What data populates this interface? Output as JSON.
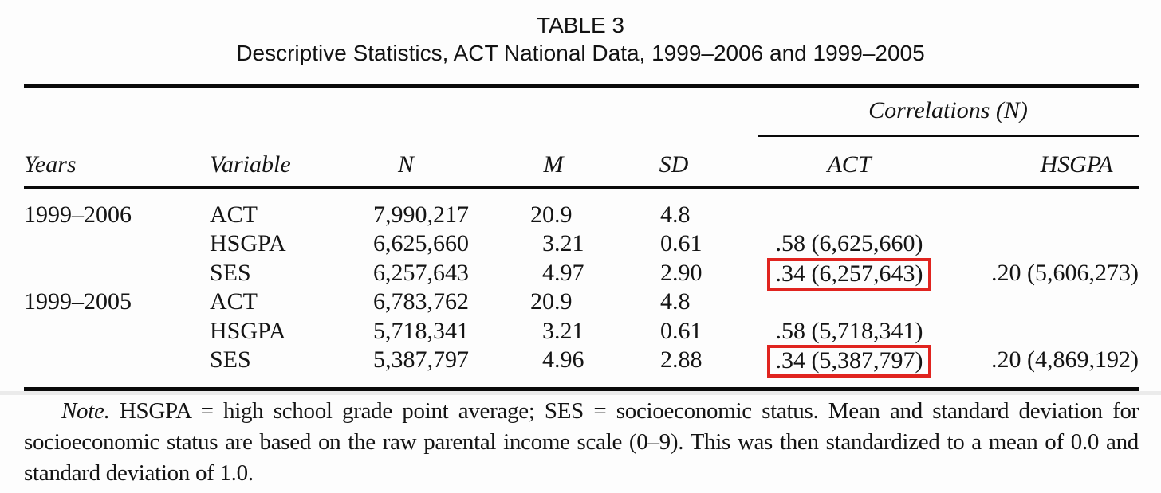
{
  "title": {
    "line1": "TABLE 3",
    "line2": "Descriptive Statistics, ACT National Data, 1999–2006 and 1999–2005"
  },
  "table": {
    "correlations_group_header": "Correlations (N)",
    "headers": {
      "years": "Years",
      "variable": "Variable",
      "n": "N",
      "m": "M",
      "sd": "SD",
      "act": "ACT",
      "hsgpa": "HSGPA"
    },
    "rows": [
      {
        "years": "1999–2006",
        "variable": "ACT",
        "n": "7,990,217",
        "m": "20.9",
        "sd": "4.8",
        "act_corr": "",
        "act_boxed": false,
        "hsgpa_corr": ""
      },
      {
        "years": "",
        "variable": "HSGPA",
        "n": "6,625,660",
        "m": "3.21",
        "sd": "0.61",
        "act_corr": ".58 (6,625,660)",
        "act_boxed": false,
        "hsgpa_corr": ""
      },
      {
        "years": "",
        "variable": "SES",
        "n": "6,257,643",
        "m": "4.97",
        "sd": "2.90",
        "act_corr": ".34 (6,257,643)",
        "act_boxed": true,
        "hsgpa_corr": ".20 (5,606,273)"
      },
      {
        "years": "1999–2005",
        "variable": "ACT",
        "n": "6,783,762",
        "m": "20.9",
        "sd": "4.8",
        "act_corr": "",
        "act_boxed": false,
        "hsgpa_corr": ""
      },
      {
        "years": "",
        "variable": "HSGPA",
        "n": "5,718,341",
        "m": "3.21",
        "sd": "0.61",
        "act_corr": ".58 (5,718,341)",
        "act_boxed": false,
        "hsgpa_corr": ""
      },
      {
        "years": "",
        "variable": "SES",
        "n": "5,387,797",
        "m": "4.96",
        "sd": "2.88",
        "act_corr": ".34 (5,387,797)",
        "act_boxed": true,
        "hsgpa_corr": ".20 (4,869,192)"
      }
    ]
  },
  "note": {
    "label": "Note.",
    "text": "HSGPA = high school grade point average; SES = socioeconomic status. Mean and standard deviation for socioeconomic status are based on the raw parental income scale (0–9). This was then standardized to a mean of 0.0 and standard deviation of 1.0."
  },
  "chart_data": {
    "type": "table",
    "title": "TABLE 3 — Descriptive Statistics, ACT National Data, 1999–2006 and 1999–2005",
    "columns": [
      "Years",
      "Variable",
      "N",
      "M",
      "SD",
      "Correlations (N): ACT",
      "Correlations (N): HSGPA"
    ],
    "rows": [
      [
        "1999–2006",
        "ACT",
        "7,990,217",
        "20.9",
        "4.8",
        "",
        ""
      ],
      [
        "",
        "HSGPA",
        "6,625,660",
        "3.21",
        "0.61",
        ".58 (6,625,660)",
        ""
      ],
      [
        "",
        "SES",
        "6,257,643",
        "4.97",
        "2.90",
        ".34 (6,257,643)",
        ".20 (5,606,273)"
      ],
      [
        "1999–2005",
        "ACT",
        "6,783,762",
        "20.9",
        "4.8",
        "",
        ""
      ],
      [
        "",
        "HSGPA",
        "5,718,341",
        "3.21",
        "0.61",
        ".58 (5,718,341)",
        ""
      ],
      [
        "",
        "SES",
        "5,387,797",
        "4.96",
        "2.88",
        ".34 (5,387,797)",
        ".20 (4,869,192)"
      ]
    ],
    "highlighted_cells": [
      ".34 (6,257,643)",
      ".34 (5,387,797)"
    ]
  },
  "colors": {
    "highlight_box_red": "#e0241f",
    "rule_black": "#0a0a0a",
    "text": "#141414",
    "background": "#fdfdfd"
  }
}
